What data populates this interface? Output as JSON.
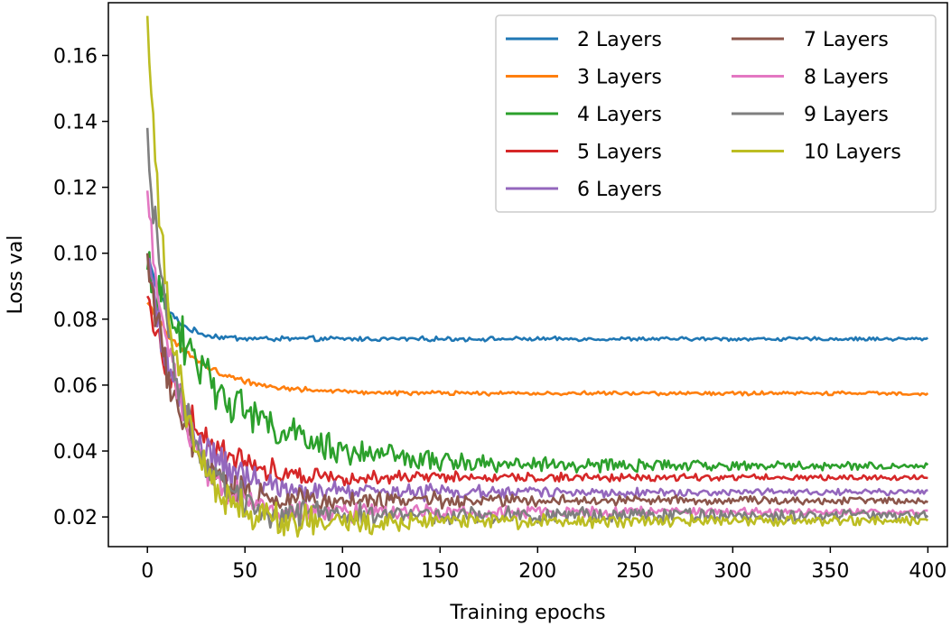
{
  "chart_data": {
    "type": "line",
    "title": "",
    "xlabel": "Training epochs",
    "ylabel": "Loss val",
    "xlim": [
      -20,
      410
    ],
    "ylim": [
      0.011,
      0.176
    ],
    "xticks": [
      0,
      50,
      100,
      150,
      200,
      250,
      300,
      350,
      400
    ],
    "yticks": [
      0.02,
      0.04,
      0.06,
      0.08,
      0.1,
      0.12,
      0.14,
      0.16
    ],
    "ytick_labels": [
      "0.02",
      "0.04",
      "0.06",
      "0.08",
      "0.10",
      "0.12",
      "0.14",
      "0.16"
    ],
    "grid": false,
    "legend_position": "top-right",
    "legend_columns": 2,
    "series": [
      {
        "name": "2 Layers",
        "color": "#1f77b4",
        "start": 0.1,
        "final": 0.074,
        "tau": 10,
        "noise_start": 0.0008,
        "noise_end": 0.0004
      },
      {
        "name": "3 Layers",
        "color": "#ff7f0e",
        "start": 0.085,
        "final": 0.0575,
        "tau": 25,
        "noise_start": 0.0008,
        "noise_end": 0.0004
      },
      {
        "name": "4 Layers",
        "color": "#2ca02c",
        "start": 0.095,
        "final": 0.0355,
        "tau": 40,
        "noise_start": 0.007,
        "noise_end": 0.0006
      },
      {
        "name": "5 Layers",
        "color": "#d62728",
        "start": 0.087,
        "final": 0.032,
        "tau": 20,
        "noise_start": 0.004,
        "noise_end": 0.0005
      },
      {
        "name": "6 Layers",
        "color": "#9467bd",
        "start": 0.098,
        "final": 0.0275,
        "tau": 18,
        "noise_start": 0.005,
        "noise_end": 0.0005
      },
      {
        "name": "7 Layers",
        "color": "#8c564b",
        "start": 0.1,
        "final": 0.025,
        "tau": 15,
        "noise_start": 0.005,
        "noise_end": 0.0006
      },
      {
        "name": "8 Layers",
        "color": "#e377c2",
        "start": 0.119,
        "final": 0.0215,
        "tau": 15,
        "noise_start": 0.005,
        "noise_end": 0.0006
      },
      {
        "name": "9 Layers",
        "color": "#7f7f7f",
        "start": 0.138,
        "final": 0.0205,
        "tau": 15,
        "noise_start": 0.006,
        "noise_end": 0.001
      },
      {
        "name": "10 Layers",
        "color": "#bcbd22",
        "start": 0.172,
        "final": 0.0188,
        "tau": 13,
        "noise_start": 0.006,
        "noise_end": 0.0008
      }
    ],
    "epochs": 400
  }
}
